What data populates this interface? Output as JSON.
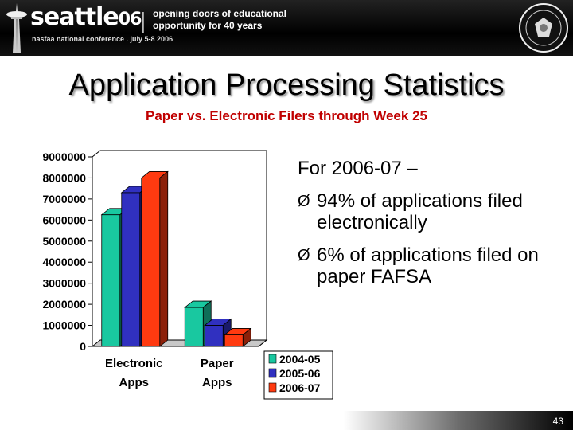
{
  "banner": {
    "brand": "seattle",
    "brand_year": "06",
    "conference": "nasfaa national conference . july 5-8 2006",
    "separator": "|",
    "tagline_line1": "opening doors of educational",
    "tagline_line2": "opportunity for 40 years"
  },
  "slide": {
    "title": "Application Processing Statistics",
    "subtitle": "Paper vs. Electronic Filers through Week 25",
    "intro": "For 2006-07 –",
    "bullets": [
      "94% of applications filed electronically",
      "6% of applications filed on paper FAFSA"
    ],
    "bullet_marker": "Ø",
    "page_number": "43"
  },
  "colors": {
    "series_2004_05": "#19c8a0",
    "series_2005_06": "#3030c0",
    "series_2006_07": "#ff3a10",
    "subtitle": "#c00000"
  },
  "chart_data": {
    "type": "bar",
    "categories": [
      "Electronic Apps",
      "Paper Apps"
    ],
    "series": [
      {
        "name": "2004-05",
        "values": [
          6250000,
          1850000
        ]
      },
      {
        "name": "2005-06",
        "values": [
          7300000,
          1000000
        ]
      },
      {
        "name": "2006-07",
        "values": [
          8000000,
          550000
        ]
      }
    ],
    "ylim": [
      0,
      9000000
    ],
    "yticks": [
      "0",
      "1000000",
      "2000000",
      "3000000",
      "4000000",
      "5000000",
      "6000000",
      "7000000",
      "8000000",
      "9000000"
    ],
    "grid": false,
    "legend_position": "bottom-right",
    "three_d": true
  }
}
